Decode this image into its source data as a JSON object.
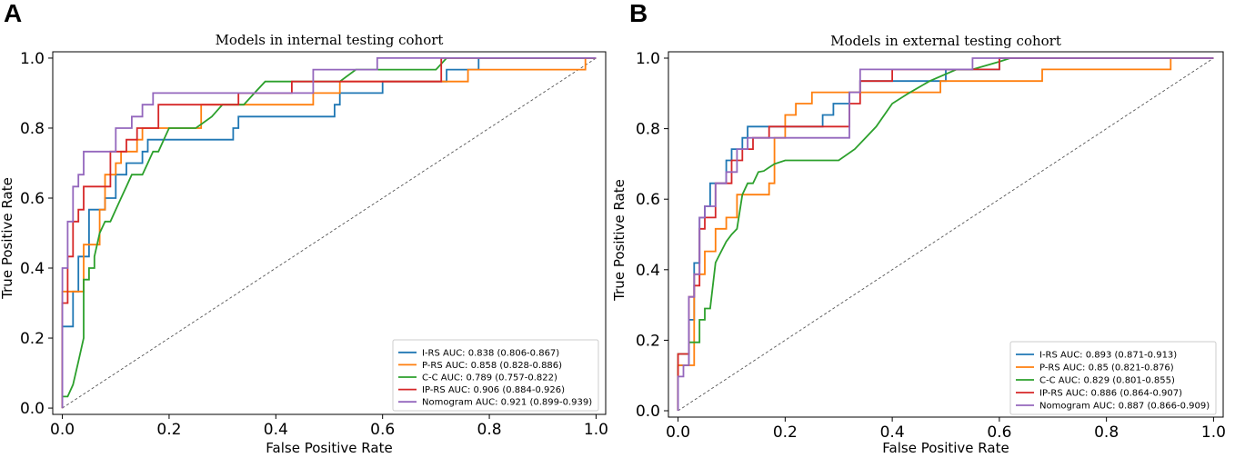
{
  "chart_data": [
    {
      "type": "line",
      "panel_label": "A",
      "title": "Models in internal testing cohort",
      "xlabel": "False Positive Rate",
      "ylabel": "True Positive Rate",
      "xlim": [
        0,
        1
      ],
      "ylim": [
        0,
        1
      ],
      "xticks": [
        "0.0",
        "0.2",
        "0.4",
        "0.6",
        "0.8",
        "1.0"
      ],
      "yticks": [
        "0.0",
        "0.2",
        "0.4",
        "0.6",
        "0.8",
        "1.0"
      ],
      "grid": false,
      "legend_position": "lower-right",
      "reference_line": {
        "x": [
          0,
          1
        ],
        "y": [
          0,
          1
        ],
        "style": "dashed",
        "color": "#555555"
      },
      "series": [
        {
          "name": "I-RS",
          "legend": "I-RS AUC: 0.838 (0.806-0.867)",
          "color": "#1f77b4",
          "x": [
            0,
            0,
            0.02,
            0.02,
            0.03,
            0.03,
            0.05,
            0.05,
            0.07,
            0.07,
            0.08,
            0.08,
            0.1,
            0.1,
            0.12,
            0.12,
            0.15,
            0.15,
            0.16,
            0.16,
            0.2,
            0.2,
            0.32,
            0.32,
            0.33,
            0.33,
            0.51,
            0.51,
            0.52,
            0.52,
            0.6,
            0.6,
            0.72,
            0.72,
            0.78,
            0.78,
            1
          ],
          "y": [
            0,
            0.233,
            0.233,
            0.333,
            0.333,
            0.433,
            0.433,
            0.567,
            0.567,
            0.567,
            0.567,
            0.6,
            0.6,
            0.667,
            0.667,
            0.7,
            0.7,
            0.733,
            0.733,
            0.767,
            0.767,
            0.767,
            0.767,
            0.8,
            0.8,
            0.833,
            0.833,
            0.867,
            0.867,
            0.9,
            0.9,
            0.933,
            0.933,
            0.967,
            0.967,
            1,
            1
          ]
        },
        {
          "name": "P-RS",
          "legend": "P-RS AUC: 0.858 (0.828-0.886)",
          "color": "#ff7f0e",
          "x": [
            0,
            0,
            0.04,
            0.04,
            0.07,
            0.07,
            0.08,
            0.08,
            0.1,
            0.1,
            0.11,
            0.11,
            0.14,
            0.14,
            0.15,
            0.15,
            0.2,
            0.2,
            0.26,
            0.26,
            0.47,
            0.47,
            0.52,
            0.52,
            0.76,
            0.76,
            0.98,
            0.98,
            1
          ],
          "y": [
            0,
            0.333,
            0.333,
            0.467,
            0.467,
            0.567,
            0.567,
            0.667,
            0.667,
            0.7,
            0.7,
            0.733,
            0.733,
            0.767,
            0.767,
            0.8,
            0.8,
            0.8,
            0.8,
            0.867,
            0.867,
            0.9,
            0.9,
            0.933,
            0.933,
            0.967,
            0.967,
            1,
            1
          ]
        },
        {
          "name": "C-C",
          "legend": "C-C AUC: 0.789 (0.757-0.822)",
          "color": "#2ca02c",
          "x": [
            0,
            0.01,
            0.02,
            0.03,
            0.04,
            0.04,
            0.05,
            0.05,
            0.06,
            0.06,
            0.07,
            0.08,
            0.09,
            0.1,
            0.11,
            0.12,
            0.13,
            0.14,
            0.15,
            0.16,
            0.17,
            0.18,
            0.19,
            0.2,
            0.25,
            0.28,
            0.3,
            0.34,
            0.36,
            0.38,
            0.52,
            0.55,
            0.6,
            0.7,
            0.72,
            0.78,
            0.9,
            0.96,
            1
          ],
          "y": [
            0.033,
            0.033,
            0.067,
            0.133,
            0.2,
            0.367,
            0.367,
            0.4,
            0.4,
            0.433,
            0.5,
            0.533,
            0.533,
            0.567,
            0.6,
            0.633,
            0.667,
            0.667,
            0.667,
            0.7,
            0.733,
            0.733,
            0.767,
            0.8,
            0.8,
            0.833,
            0.867,
            0.867,
            0.9,
            0.933,
            0.933,
            0.967,
            0.967,
            0.967,
            1,
            1,
            1,
            1,
            1
          ]
        },
        {
          "name": "IP-RS",
          "legend": "IP-RS AUC: 0.906 (0.884-0.926)",
          "color": "#d62728",
          "x": [
            0,
            0,
            0.01,
            0.01,
            0.02,
            0.02,
            0.03,
            0.03,
            0.04,
            0.04,
            0.09,
            0.09,
            0.12,
            0.12,
            0.14,
            0.14,
            0.18,
            0.18,
            0.33,
            0.33,
            0.43,
            0.43,
            0.71,
            0.71,
            1
          ],
          "y": [
            0,
            0.3,
            0.3,
            0.433,
            0.433,
            0.533,
            0.533,
            0.567,
            0.567,
            0.633,
            0.633,
            0.733,
            0.733,
            0.767,
            0.767,
            0.8,
            0.8,
            0.867,
            0.867,
            0.9,
            0.9,
            0.933,
            0.933,
            1,
            1
          ]
        },
        {
          "name": "Nomogram",
          "legend": "Nomogram AUC: 0.921 (0.899-0.939)",
          "color": "#9467bd",
          "x": [
            0,
            0,
            0.01,
            0.01,
            0.02,
            0.02,
            0.03,
            0.03,
            0.04,
            0.04,
            0.1,
            0.1,
            0.13,
            0.13,
            0.15,
            0.15,
            0.17,
            0.17,
            0.19,
            0.19,
            0.22,
            0.22,
            0.47,
            0.47,
            0.59,
            0.59,
            1
          ],
          "y": [
            0,
            0.4,
            0.4,
            0.533,
            0.533,
            0.633,
            0.633,
            0.667,
            0.667,
            0.733,
            0.733,
            0.8,
            0.8,
            0.833,
            0.833,
            0.867,
            0.867,
            0.9,
            0.9,
            0.9,
            0.9,
            0.9,
            0.9,
            0.967,
            0.967,
            1,
            1
          ]
        }
      ]
    },
    {
      "type": "line",
      "panel_label": "B",
      "title": "Models in external testing cohort",
      "xlabel": "False Positive Rate",
      "ylabel": "True Positive Rate",
      "xlim": [
        0,
        1
      ],
      "ylim": [
        0,
        1
      ],
      "xticks": [
        "0.0",
        "0.2",
        "0.4",
        "0.6",
        "0.8",
        "1.0"
      ],
      "yticks": [
        "0.0",
        "0.2",
        "0.4",
        "0.6",
        "0.8",
        "1.0"
      ],
      "grid": false,
      "legend_position": "lower-right",
      "reference_line": {
        "x": [
          0,
          1
        ],
        "y": [
          0,
          1
        ],
        "style": "dashed",
        "color": "#555555"
      },
      "series": [
        {
          "name": "I-RS",
          "legend": "I-RS AUC: 0.893 (0.871-0.913)",
          "color": "#1f77b4",
          "x": [
            0,
            0,
            0.02,
            0.02,
            0.03,
            0.03,
            0.04,
            0.04,
            0.05,
            0.05,
            0.06,
            0.06,
            0.09,
            0.09,
            0.1,
            0.1,
            0.12,
            0.12,
            0.13,
            0.13,
            0.27,
            0.27,
            0.29,
            0.29,
            0.32,
            0.32,
            0.34,
            0.34,
            0.37,
            0.37,
            0.5,
            0.5,
            0.6,
            0.6,
            1
          ],
          "y": [
            0,
            0.129,
            0.129,
            0.258,
            0.258,
            0.419,
            0.419,
            0.548,
            0.548,
            0.58,
            0.58,
            0.645,
            0.645,
            0.71,
            0.71,
            0.742,
            0.742,
            0.774,
            0.774,
            0.806,
            0.806,
            0.839,
            0.839,
            0.871,
            0.871,
            0.903,
            0.903,
            0.935,
            0.935,
            0.935,
            0.935,
            0.968,
            0.968,
            1,
            1
          ]
        },
        {
          "name": "P-RS",
          "legend": "P-RS AUC: 0.85 (0.821-0.876)",
          "color": "#ff7f0e",
          "x": [
            0,
            0,
            0.03,
            0.03,
            0.05,
            0.05,
            0.07,
            0.07,
            0.09,
            0.09,
            0.11,
            0.11,
            0.17,
            0.17,
            0.18,
            0.18,
            0.2,
            0.2,
            0.22,
            0.22,
            0.25,
            0.25,
            0.3,
            0.3,
            0.49,
            0.49,
            0.68,
            0.68,
            0.92,
            0.92,
            1
          ],
          "y": [
            0,
            0.129,
            0.129,
            0.387,
            0.387,
            0.452,
            0.452,
            0.516,
            0.516,
            0.548,
            0.548,
            0.613,
            0.613,
            0.645,
            0.645,
            0.774,
            0.774,
            0.839,
            0.839,
            0.871,
            0.871,
            0.903,
            0.903,
            0.903,
            0.903,
            0.935,
            0.935,
            0.968,
            0.968,
            1,
            1
          ]
        },
        {
          "name": "C-C",
          "legend": "C-C AUC: 0.829 (0.801-0.855)",
          "color": "#2ca02c",
          "x": [
            0,
            0,
            0.02,
            0.02,
            0.04,
            0.04,
            0.05,
            0.05,
            0.06,
            0.07,
            0.08,
            0.09,
            0.1,
            0.11,
            0.12,
            0.13,
            0.14,
            0.15,
            0.16,
            0.17,
            0.18,
            0.2,
            0.22,
            0.3,
            0.33,
            0.35,
            0.37,
            0.4,
            0.43,
            0.47,
            0.52,
            0.55,
            0.6,
            0.62,
            1
          ],
          "y": [
            0,
            0.161,
            0.161,
            0.194,
            0.194,
            0.258,
            0.258,
            0.29,
            0.29,
            0.42,
            0.45,
            0.48,
            0.5,
            0.516,
            0.613,
            0.645,
            0.645,
            0.677,
            0.68,
            0.69,
            0.7,
            0.71,
            0.71,
            0.71,
            0.742,
            0.774,
            0.806,
            0.871,
            0.9,
            0.935,
            0.968,
            0.968,
            0.99,
            1,
            1
          ]
        },
        {
          "name": "IP-RS",
          "legend": "IP-RS AUC: 0.886 (0.864-0.907)",
          "color": "#d62728",
          "x": [
            0,
            0,
            0.02,
            0.02,
            0.03,
            0.03,
            0.04,
            0.04,
            0.05,
            0.05,
            0.07,
            0.07,
            0.1,
            0.1,
            0.12,
            0.12,
            0.14,
            0.14,
            0.17,
            0.17,
            0.32,
            0.32,
            0.34,
            0.34,
            0.4,
            0.4,
            0.6,
            0.6,
            1
          ],
          "y": [
            0,
            0.161,
            0.161,
            0.323,
            0.323,
            0.355,
            0.355,
            0.516,
            0.516,
            0.548,
            0.548,
            0.645,
            0.645,
            0.71,
            0.71,
            0.742,
            0.742,
            0.774,
            0.774,
            0.806,
            0.806,
            0.871,
            0.871,
            0.935,
            0.935,
            0.968,
            0.968,
            1,
            1
          ]
        },
        {
          "name": "Nomogram",
          "legend": "Nomogram AUC: 0.887 (0.866-0.909)",
          "color": "#9467bd",
          "x": [
            0,
            0,
            0.01,
            0.01,
            0.02,
            0.02,
            0.03,
            0.03,
            0.04,
            0.04,
            0.05,
            0.05,
            0.07,
            0.07,
            0.09,
            0.09,
            0.11,
            0.11,
            0.13,
            0.13,
            0.32,
            0.32,
            0.34,
            0.34,
            0.55,
            0.55,
            1
          ],
          "y": [
            0,
            0.097,
            0.097,
            0.129,
            0.129,
            0.323,
            0.323,
            0.387,
            0.387,
            0.548,
            0.548,
            0.58,
            0.58,
            0.645,
            0.645,
            0.677,
            0.677,
            0.742,
            0.742,
            0.774,
            0.774,
            0.903,
            0.903,
            0.968,
            0.968,
            1,
            1
          ]
        }
      ]
    }
  ]
}
